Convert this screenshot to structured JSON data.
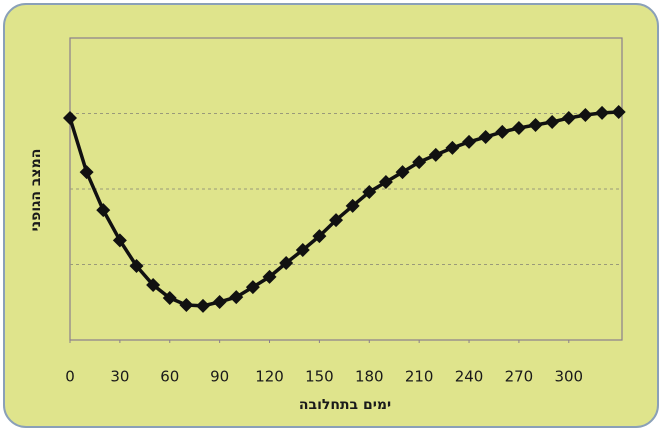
{
  "chart_data": {
    "type": "line",
    "x_label": "ימים בתחלובה",
    "y_label": "המצב הגופני",
    "x": [
      0,
      10,
      20,
      30,
      40,
      50,
      60,
      70,
      80,
      90,
      100,
      110,
      120,
      130,
      140,
      150,
      160,
      170,
      180,
      190,
      200,
      210,
      220,
      230,
      240,
      250,
      260,
      270,
      280,
      290,
      300,
      310,
      320,
      330
    ],
    "values": [
      73.5,
      55.6,
      43,
      33,
      24.5,
      18.2,
      13.9,
      11.6,
      11.3,
      12.6,
      14.2,
      17.5,
      20.9,
      25.5,
      29.8,
      34.4,
      39.7,
      44.4,
      49,
      52.3,
      55.6,
      58.9,
      61.3,
      63.6,
      65.6,
      67.2,
      68.9,
      70.2,
      71.2,
      72.2,
      73.5,
      74.5,
      75.2,
      75.5
    ],
    "color": "#111111",
    "xlim": [
      0,
      332
    ],
    "xticks": [
      0,
      30,
      60,
      90,
      120,
      150,
      180,
      210,
      240,
      270,
      300
    ],
    "ylim": [
      0,
      100
    ],
    "ygrid": [
      25,
      50,
      75
    ],
    "marker": "diamond"
  }
}
